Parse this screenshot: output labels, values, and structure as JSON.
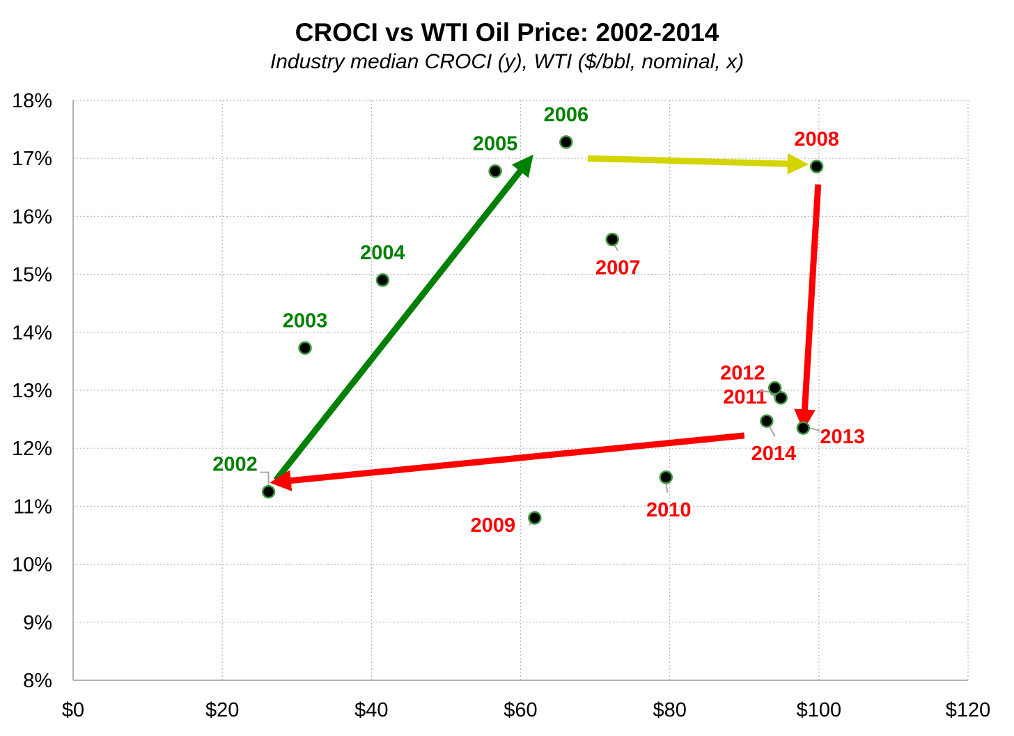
{
  "chart_data": {
    "type": "scatter",
    "title": "CROCI vs WTI Oil Price: 2002-2014",
    "subtitle": "Industry median CROCI (y), WTI ($/bbl, nominal, x)",
    "xlim": [
      0,
      120
    ],
    "ylim": [
      8,
      18
    ],
    "x_ticks": [
      0,
      20,
      40,
      60,
      80,
      100,
      120
    ],
    "x_tick_labels": [
      "$0",
      "$20",
      "$40",
      "$60",
      "$80",
      "$100",
      "$120"
    ],
    "y_ticks": [
      8,
      9,
      10,
      11,
      12,
      13,
      14,
      15,
      16,
      17,
      18
    ],
    "y_tick_labels": [
      "8%",
      "9%",
      "10%",
      "11%",
      "12%",
      "13%",
      "14%",
      "15%",
      "16%",
      "17%",
      "18%"
    ],
    "grid": true,
    "points": [
      {
        "label": "2002",
        "x": 26.2,
        "y": 11.25,
        "color": "#008000"
      },
      {
        "label": "2003",
        "x": 31.1,
        "y": 13.73,
        "color": "#008000"
      },
      {
        "label": "2004",
        "x": 41.5,
        "y": 14.9,
        "color": "#008000"
      },
      {
        "label": "2005",
        "x": 56.6,
        "y": 16.78,
        "color": "#008000"
      },
      {
        "label": "2006",
        "x": 66.1,
        "y": 17.28,
        "color": "#008000"
      },
      {
        "label": "2007",
        "x": 72.3,
        "y": 15.6,
        "color": "#ff0000"
      },
      {
        "label": "2008",
        "x": 99.7,
        "y": 16.86,
        "color": "#ff0000"
      },
      {
        "label": "2009",
        "x": 61.9,
        "y": 10.8,
        "color": "#ff0000"
      },
      {
        "label": "2010",
        "x": 79.5,
        "y": 11.5,
        "color": "#ff0000"
      },
      {
        "label": "2011",
        "x": 94.9,
        "y": 12.87,
        "color": "#ff0000"
      },
      {
        "label": "2012",
        "x": 94.1,
        "y": 13.04,
        "color": "#ff0000"
      },
      {
        "label": "2013",
        "x": 97.9,
        "y": 12.35,
        "color": "#ff0000"
      },
      {
        "label": "2014",
        "x": 93.0,
        "y": 12.47,
        "color": "#ff0000"
      }
    ],
    "arrows": [
      {
        "from": [
          27.2,
          11.45
        ],
        "to": [
          61.0,
          16.95
        ],
        "color": "#008000"
      },
      {
        "from": [
          69.0,
          17.0
        ],
        "to": [
          97.5,
          16.9
        ],
        "color": "#d4d400"
      },
      {
        "from": [
          99.9,
          16.55
        ],
        "to": [
          98.0,
          12.45
        ],
        "color": "#ff0000"
      },
      {
        "from": [
          90.0,
          12.22
        ],
        "to": [
          27.5,
          11.42
        ],
        "color": "#ff0000"
      }
    ]
  }
}
